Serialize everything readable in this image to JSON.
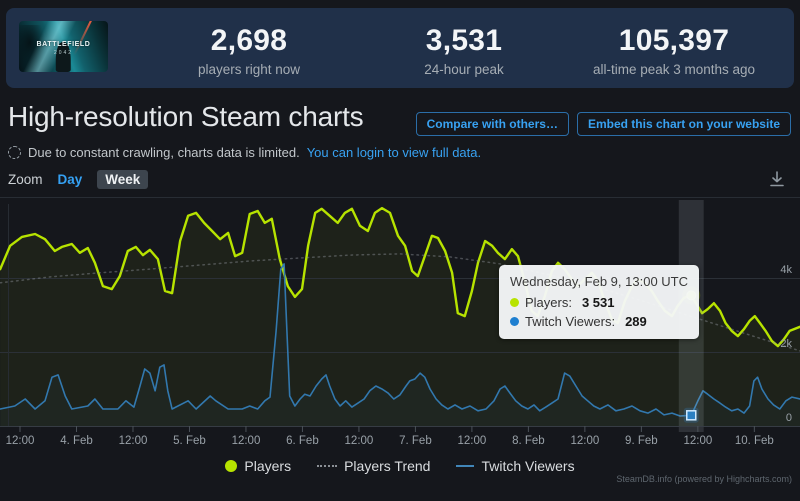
{
  "stats_bar": {
    "banner": {
      "title": "BATTLEFIELD",
      "subtitle": "2042"
    },
    "stats": [
      {
        "value": "2,698",
        "label": "players right now"
      },
      {
        "value": "3,531",
        "label": "24-hour peak"
      },
      {
        "value": "105,397",
        "label": "all-time peak 3 months ago"
      }
    ]
  },
  "header": {
    "title": "High-resolution Steam charts",
    "buttons": [
      {
        "label": "Compare with others…"
      },
      {
        "label": "Embed this chart on your website"
      }
    ],
    "notice": {
      "text": "Due to constant crawling, charts data is limited.",
      "link": "You can login to view full data."
    }
  },
  "toolbar": {
    "zoom_label": "Zoom",
    "day_label": "Day",
    "week_label": "Week",
    "selected": "Week"
  },
  "chart_data": {
    "type": "line",
    "x_axis": {
      "x_unit": "hours since Feb 3, 12:00 UTC",
      "tick_interval_hours": 12,
      "domain_hours": [
        -4.25,
        165.7
      ],
      "labels": [
        "12:00",
        "4. Feb",
        "12:00",
        "5. Feb",
        "12:00",
        "6. Feb",
        "12:00",
        "7. Feb",
        "12:00",
        "8. Feb",
        "12:00",
        "9. Feb",
        "12:00",
        "10. Feb"
      ]
    },
    "y_axis": {
      "position": "right",
      "domain": [
        0,
        6000
      ],
      "ticks": [
        {
          "value": 0,
          "label": "0"
        },
        {
          "value": 2000,
          "label": "2k"
        },
        {
          "value": 4000,
          "label": "4k"
        }
      ]
    },
    "series": [
      {
        "name": "Players",
        "color": "#b7e300",
        "width": 2.4,
        "area_color": "rgba(183,227,0,0.06)",
        "points": [
          [
            -4.2,
            4240
          ],
          [
            -2.1,
            4870
          ],
          [
            0.4,
            5110
          ],
          [
            3.2,
            5190
          ],
          [
            5.3,
            5050
          ],
          [
            7.4,
            4730
          ],
          [
            8.9,
            4840
          ],
          [
            11,
            4920
          ],
          [
            12.7,
            4680
          ],
          [
            14.4,
            4810
          ],
          [
            15.9,
            4410
          ],
          [
            17.6,
            3780
          ],
          [
            19.5,
            3700
          ],
          [
            21.2,
            4050
          ],
          [
            22.9,
            4730
          ],
          [
            24.6,
            4840
          ],
          [
            26.1,
            4620
          ],
          [
            27.6,
            4760
          ],
          [
            29.3,
            4510
          ],
          [
            30.8,
            3650
          ],
          [
            32.3,
            3590
          ],
          [
            34,
            5000
          ],
          [
            35.7,
            5680
          ],
          [
            37.4,
            5760
          ],
          [
            39.1,
            5490
          ],
          [
            40.8,
            5270
          ],
          [
            42.5,
            5050
          ],
          [
            44.2,
            5220
          ],
          [
            45.7,
            4590
          ],
          [
            47.2,
            4680
          ],
          [
            48.8,
            5730
          ],
          [
            50.5,
            5810
          ],
          [
            52,
            5490
          ],
          [
            53.5,
            5600
          ],
          [
            55.2,
            4510
          ],
          [
            56.9,
            3780
          ],
          [
            58.4,
            3490
          ],
          [
            59.9,
            3700
          ],
          [
            61.2,
            4870
          ],
          [
            62.7,
            5760
          ],
          [
            64.1,
            5870
          ],
          [
            65.8,
            5680
          ],
          [
            67.5,
            5490
          ],
          [
            69,
            5760
          ],
          [
            70.5,
            5870
          ],
          [
            72.2,
            5410
          ],
          [
            73.9,
            5270
          ],
          [
            75.4,
            5760
          ],
          [
            76.9,
            5890
          ],
          [
            78.6,
            5760
          ],
          [
            80.3,
            5140
          ],
          [
            81.8,
            4870
          ],
          [
            83.3,
            4190
          ],
          [
            84.5,
            4050
          ],
          [
            86,
            4590
          ],
          [
            87.5,
            5140
          ],
          [
            88.8,
            5080
          ],
          [
            90.3,
            4730
          ],
          [
            91.8,
            4140
          ],
          [
            93,
            3050
          ],
          [
            94.5,
            2970
          ],
          [
            96,
            3650
          ],
          [
            97.3,
            4410
          ],
          [
            98.8,
            5000
          ],
          [
            100.3,
            4870
          ],
          [
            101.5,
            4680
          ],
          [
            103,
            4510
          ],
          [
            104.5,
            4780
          ],
          [
            105.8,
            4590
          ],
          [
            107.3,
            3870
          ],
          [
            108.7,
            3110
          ],
          [
            110,
            2970
          ],
          [
            111.5,
            3510
          ],
          [
            113,
            4190
          ],
          [
            114.3,
            4410
          ],
          [
            115.7,
            4240
          ],
          [
            117.2,
            3970
          ],
          [
            118.5,
            3780
          ],
          [
            120,
            3970
          ],
          [
            121.5,
            4140
          ],
          [
            122.8,
            3920
          ],
          [
            124.2,
            3380
          ],
          [
            125.7,
            2890
          ],
          [
            127,
            2780
          ],
          [
            128.5,
            3380
          ],
          [
            130,
            3780
          ],
          [
            131.2,
            3970
          ],
          [
            132.7,
            3870
          ],
          [
            134.2,
            3650
          ],
          [
            135.5,
            3380
          ],
          [
            137,
            3110
          ],
          [
            138.5,
            2970
          ],
          [
            139.7,
            3240
          ],
          [
            141,
            3460
          ],
          [
            142.6,
            3531
          ],
          [
            143.6,
            3320
          ],
          [
            144.9,
            3050
          ],
          [
            146.1,
            3160
          ],
          [
            147.4,
            3320
          ],
          [
            148.7,
            3110
          ],
          [
            149.9,
            2780
          ],
          [
            151.2,
            2570
          ],
          [
            152.5,
            2430
          ],
          [
            153.8,
            2620
          ],
          [
            155,
            2840
          ],
          [
            156.1,
            2970
          ],
          [
            157.2,
            2780
          ],
          [
            158.4,
            2570
          ],
          [
            159.7,
            2300
          ],
          [
            161,
            2160
          ],
          [
            162.3,
            2350
          ],
          [
            163.5,
            2570
          ],
          [
            165.7,
            2680
          ]
        ]
      },
      {
        "name": "Players Trend",
        "color": "#8b9096",
        "width": 1.5,
        "dash": "1.5 4",
        "opacity": 0.45,
        "points": [
          [
            -4.2,
            3870
          ],
          [
            6.4,
            4030
          ],
          [
            17,
            4140
          ],
          [
            27.6,
            4240
          ],
          [
            38.2,
            4350
          ],
          [
            48.8,
            4460
          ],
          [
            59.5,
            4540
          ],
          [
            70.1,
            4620
          ],
          [
            80.7,
            4650
          ],
          [
            91.3,
            4570
          ],
          [
            102,
            4380
          ],
          [
            112.6,
            4080
          ],
          [
            123.2,
            3730
          ],
          [
            133.8,
            3320
          ],
          [
            144.4,
            2890
          ],
          [
            155,
            2460
          ],
          [
            165.7,
            2030
          ]
        ]
      },
      {
        "name": "Twitch Viewers",
        "color": "#3278ae",
        "width": 1.6,
        "area_color": "rgba(50,120,174,0.05)",
        "points": [
          [
            -4.2,
            460
          ],
          [
            -1.1,
            540
          ],
          [
            1.1,
            730
          ],
          [
            3.2,
            460
          ],
          [
            5.3,
            680
          ],
          [
            6.8,
            1320
          ],
          [
            8.1,
            1380
          ],
          [
            9.6,
            810
          ],
          [
            11,
            460
          ],
          [
            14.4,
            540
          ],
          [
            15.9,
            730
          ],
          [
            17.6,
            460
          ],
          [
            20.8,
            460
          ],
          [
            22.5,
            680
          ],
          [
            24.2,
            510
          ],
          [
            25.5,
            1080
          ],
          [
            26.5,
            1540
          ],
          [
            27.6,
            1430
          ],
          [
            28.7,
            950
          ],
          [
            29.7,
            1590
          ],
          [
            30.6,
            1650
          ],
          [
            31.4,
            950
          ],
          [
            32.3,
            460
          ],
          [
            35.7,
            680
          ],
          [
            37.4,
            460
          ],
          [
            40.4,
            810
          ],
          [
            41.6,
            680
          ],
          [
            44.2,
            460
          ],
          [
            47.2,
            460
          ],
          [
            48.8,
            540
          ],
          [
            50.5,
            460
          ],
          [
            52,
            680
          ],
          [
            53.1,
            780
          ],
          [
            54.4,
            2570
          ],
          [
            55.4,
            4240
          ],
          [
            56.1,
            4380
          ],
          [
            56.7,
            2570
          ],
          [
            57.3,
            810
          ],
          [
            58.4,
            540
          ],
          [
            59.5,
            730
          ],
          [
            60.5,
            860
          ],
          [
            61.6,
            810
          ],
          [
            62.9,
            1080
          ],
          [
            64.1,
            1270
          ],
          [
            65,
            1380
          ],
          [
            65.8,
            1080
          ],
          [
            66.9,
            730
          ],
          [
            68,
            540
          ],
          [
            69.2,
            680
          ],
          [
            70.5,
            510
          ],
          [
            71.8,
            620
          ],
          [
            73.1,
            730
          ],
          [
            74.3,
            950
          ],
          [
            75.6,
            1080
          ],
          [
            76.9,
            1000
          ],
          [
            78.2,
            890
          ],
          [
            79.4,
            730
          ],
          [
            80.7,
            840
          ],
          [
            82,
            1080
          ],
          [
            82.8,
            1220
          ],
          [
            83.9,
            1270
          ],
          [
            85,
            1430
          ],
          [
            86,
            1320
          ],
          [
            87.1,
            1000
          ],
          [
            88.4,
            730
          ],
          [
            89.6,
            570
          ],
          [
            90.9,
            460
          ],
          [
            92.4,
            570
          ],
          [
            93.9,
            460
          ],
          [
            95.6,
            540
          ],
          [
            97.3,
            410
          ],
          [
            99,
            460
          ],
          [
            100.7,
            680
          ],
          [
            102,
            1000
          ],
          [
            103,
            1080
          ],
          [
            104.1,
            890
          ],
          [
            105.3,
            680
          ],
          [
            106.6,
            540
          ],
          [
            107.9,
            460
          ],
          [
            109.2,
            570
          ],
          [
            110.4,
            410
          ],
          [
            111.7,
            510
          ],
          [
            113,
            620
          ],
          [
            114.3,
            730
          ],
          [
            115.7,
            1430
          ],
          [
            116.8,
            1350
          ],
          [
            118.1,
            1080
          ],
          [
            119.4,
            810
          ],
          [
            120.6,
            680
          ],
          [
            121.9,
            540
          ],
          [
            123.2,
            460
          ],
          [
            124.9,
            570
          ],
          [
            126.6,
            410
          ],
          [
            128.3,
            460
          ],
          [
            130,
            540
          ],
          [
            131.7,
            410
          ],
          [
            133.4,
            350
          ],
          [
            135.1,
            460
          ],
          [
            136.8,
            300
          ],
          [
            138.5,
            350
          ],
          [
            140.2,
            270
          ],
          [
            142.6,
            289
          ],
          [
            144,
            680
          ],
          [
            145.1,
            950
          ],
          [
            146.1,
            860
          ],
          [
            147.4,
            730
          ],
          [
            148.7,
            620
          ],
          [
            149.9,
            510
          ],
          [
            151.2,
            410
          ],
          [
            152.5,
            460
          ],
          [
            153.8,
            350
          ],
          [
            155,
            540
          ],
          [
            155.9,
            1220
          ],
          [
            156.7,
            1320
          ],
          [
            157.6,
            1000
          ],
          [
            158.9,
            730
          ],
          [
            160.1,
            570
          ],
          [
            161.4,
            460
          ],
          [
            162.7,
            680
          ],
          [
            164,
            780
          ],
          [
            165.7,
            730
          ]
        ]
      }
    ],
    "hover": {
      "hour": 142.6,
      "band_hours": [
        139.95,
        145.25
      ],
      "markers": [
        {
          "series": "Players",
          "value": 3531,
          "shape": "circle"
        },
        {
          "series": "Twitch Viewers",
          "value": 289,
          "shape": "square"
        }
      ]
    }
  },
  "tooltip": {
    "title": "Wednesday, Feb 9, 13:00 UTC",
    "rows": [
      {
        "label": "Players:",
        "value": "3 531",
        "color": "#b7e300",
        "swatch": "dot"
      },
      {
        "label": "Twitch Viewers:",
        "value": "289",
        "color": "#1e7fd0",
        "swatch": "dot"
      }
    ]
  },
  "legend": {
    "items": [
      {
        "label": "Players",
        "swatch": "dot",
        "color": "#b7e300"
      },
      {
        "label": "Players Trend",
        "swatch": "dash",
        "color": "#8b9096"
      },
      {
        "label": "Twitch Viewers",
        "swatch": "line",
        "color": "#4186b8"
      }
    ]
  },
  "footer": {
    "credit": "SteamDB.info (powered by Highcharts.com)"
  }
}
